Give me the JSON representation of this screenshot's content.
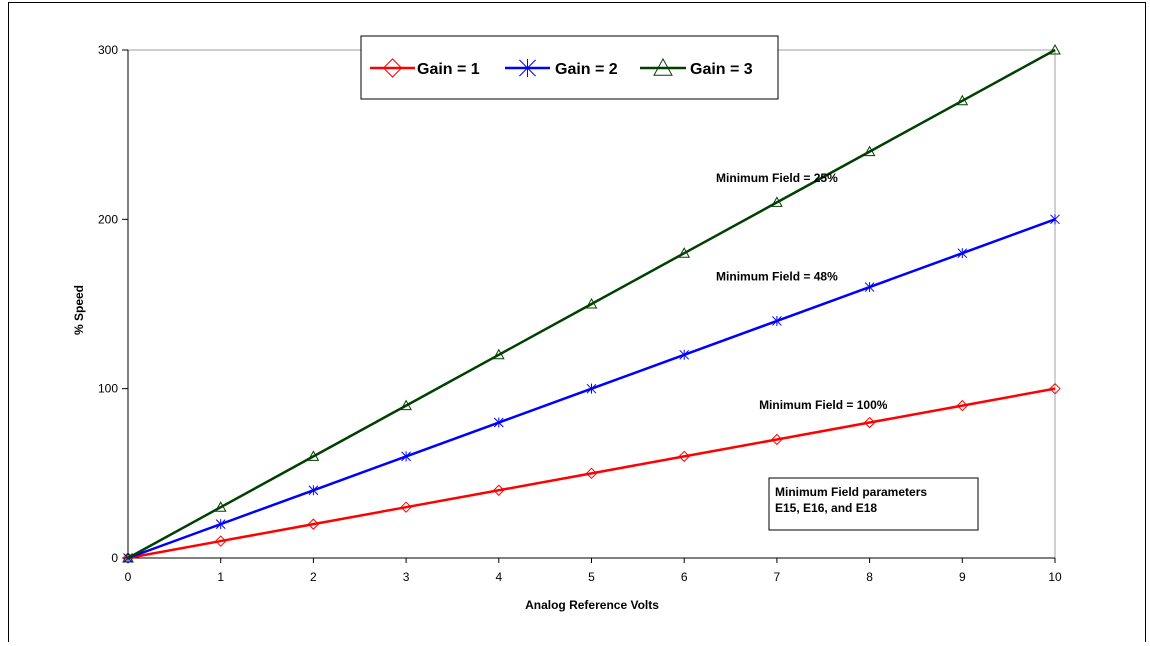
{
  "chart_data": {
    "type": "line",
    "title": "",
    "xlabel": "Analog Reference Volts",
    "ylabel": "% Speed",
    "xlim": [
      0,
      10
    ],
    "ylim": [
      0,
      300
    ],
    "x_ticks": [
      "0",
      "1",
      "2",
      "3",
      "4",
      "5",
      "6",
      "7",
      "8",
      "9",
      "10"
    ],
    "y_ticks": [
      "0",
      "100",
      "200",
      "300"
    ],
    "grid": false,
    "legend_position": "top-center",
    "x": [
      0,
      1,
      2,
      3,
      4,
      5,
      6,
      7,
      8,
      9,
      10
    ],
    "series": [
      {
        "name": "Gain = 1",
        "color": "#ff0000",
        "marker": "diamond",
        "values": [
          0,
          10,
          20,
          30,
          40,
          50,
          60,
          70,
          80,
          90,
          100
        ]
      },
      {
        "name": "Gain = 2",
        "color": "#0000ff",
        "marker": "asterisk",
        "values": [
          0,
          20,
          40,
          60,
          80,
          100,
          120,
          140,
          160,
          180,
          200
        ]
      },
      {
        "name": "Gain = 3",
        "color": "#004000",
        "marker": "triangle",
        "values": [
          0,
          30,
          60,
          90,
          120,
          150,
          180,
          210,
          240,
          270,
          300
        ]
      }
    ],
    "annotations": [
      {
        "text": "Minimum Field = 25%",
        "x": 7.0,
        "y": 222
      },
      {
        "text": "Minimum Field = 48%",
        "x": 7.0,
        "y": 164
      },
      {
        "text": "Minimum Field = 100%",
        "x": 7.5,
        "y": 88
      }
    ],
    "note_box": {
      "lines": [
        "Minimum Field parameters",
        "E15, E16, and E18"
      ]
    }
  }
}
